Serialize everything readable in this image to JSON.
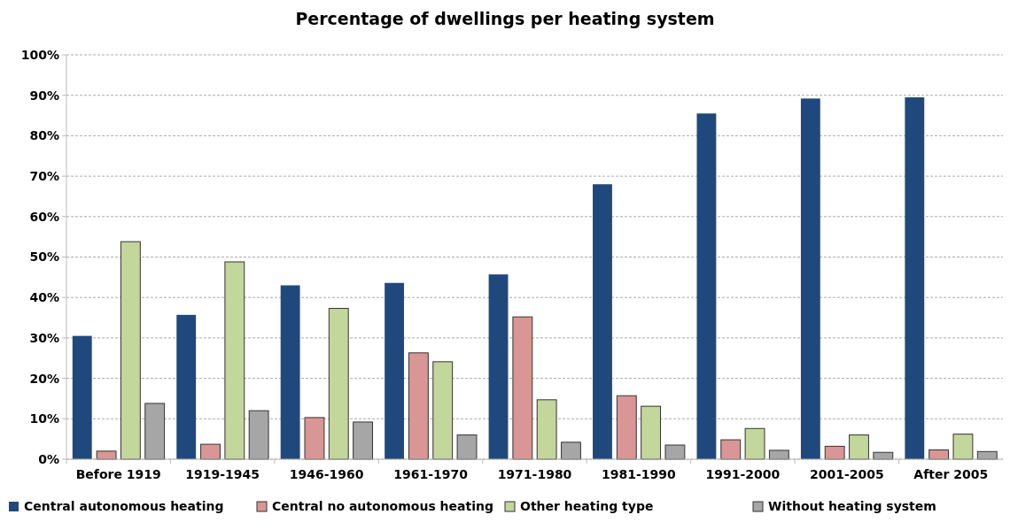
{
  "chart_data": {
    "type": "bar",
    "title": "Percentage of dwellings per heating system",
    "categories": [
      "Before 1919",
      "1919-1945",
      "1946-1960",
      "1961-1970",
      "1971-1980",
      "1981-1990",
      "1991-2000",
      "2001-2005",
      "After 2005"
    ],
    "series": [
      {
        "name": "Central autonomous heating",
        "color": "#1f497d",
        "values": [
          30.5,
          35.7,
          43,
          43.6,
          45.7,
          68,
          85.5,
          89.2,
          89.5
        ]
      },
      {
        "name": "Central no autonomous heating",
        "color": "#d99694",
        "values": [
          2,
          3.7,
          10.3,
          26.3,
          35.2,
          15.7,
          4.8,
          3.2,
          2.3
        ]
      },
      {
        "name": "Other heating type",
        "color": "#c3d69b",
        "values": [
          53.8,
          48.8,
          37.3,
          24.1,
          14.7,
          13.1,
          7.6,
          6,
          6.2
        ]
      },
      {
        "name": "Without heating system",
        "color": "#a6a6a6",
        "values": [
          13.8,
          12,
          9.2,
          6,
          4.2,
          3.5,
          2.2,
          1.7,
          1.9
        ]
      }
    ],
    "ylim": [
      0,
      100
    ],
    "yticks": [
      {
        "value": 0,
        "label": "0%"
      },
      {
        "value": 10,
        "label": "10%"
      },
      {
        "value": 20,
        "label": "20%"
      },
      {
        "value": 30,
        "label": "30%"
      },
      {
        "value": 40,
        "label": "40%"
      },
      {
        "value": 50,
        "label": "50%"
      },
      {
        "value": 60,
        "label": "60%"
      },
      {
        "value": 70,
        "label": "70%"
      },
      {
        "value": 80,
        "label": "80%"
      },
      {
        "value": 90,
        "label": "90%"
      },
      {
        "value": 100,
        "label": "100%"
      }
    ],
    "grid": "y",
    "legend": "bottom"
  }
}
